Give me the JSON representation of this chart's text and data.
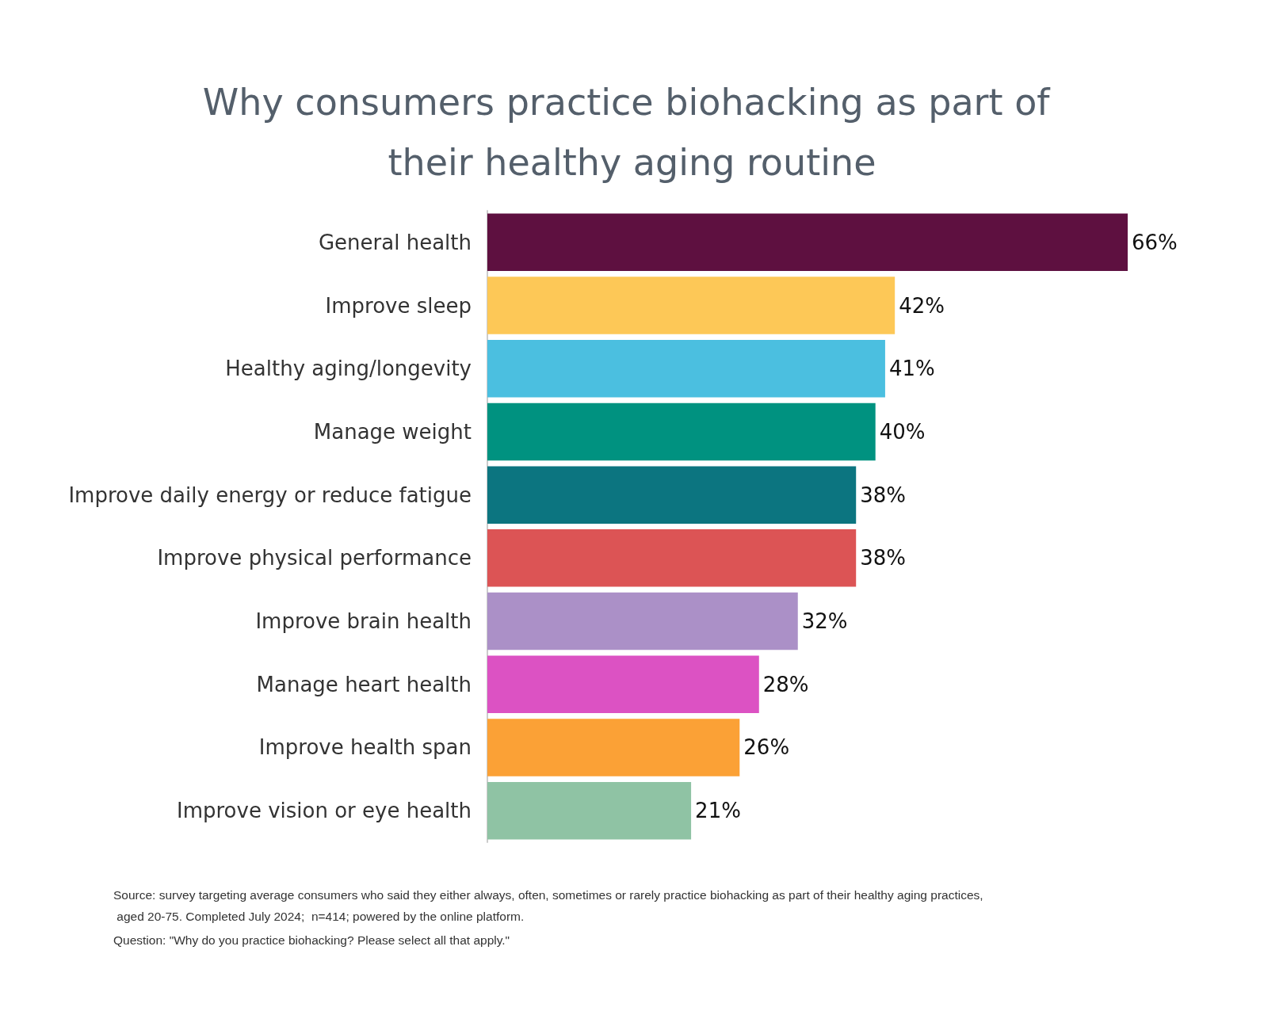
{
  "chart_data": {
    "type": "bar",
    "orientation": "horizontal",
    "title": "Why consumers practice biohacking as part of their healthy aging routine",
    "categories": [
      "General health",
      "Improve sleep",
      "Healthy aging/longevity",
      "Manage weight",
      "Improve daily energy or reduce fatigue",
      "Improve physical performance",
      "Improve brain health",
      "Manage heart health",
      "Improve health span",
      "Improve vision or eye health"
    ],
    "values": [
      66,
      42,
      41,
      40,
      38,
      38,
      32,
      28,
      26,
      21
    ],
    "value_labels": [
      "66%",
      "42%",
      "41%",
      "40%",
      "38%",
      "38%",
      "32%",
      "28%",
      "26%",
      "21%"
    ],
    "colors": [
      "#5e1040",
      "#fdc857",
      "#4bbfe0",
      "#009280",
      "#0c7580",
      "#dc5455",
      "#ab90c7",
      "#dc52c3",
      "#fba136",
      "#8fc3a4"
    ],
    "annotations": [
      "Source: survey targeting average consumers who said they either always, often, sometimes or rarely practice biohacking as part of their healthy aging practices, aged 20-75. Completed July 2024;  n=414; powered by the online platform.",
      "Question: \"Why do you practice biohacking? Please select all that apply.\""
    ]
  }
}
